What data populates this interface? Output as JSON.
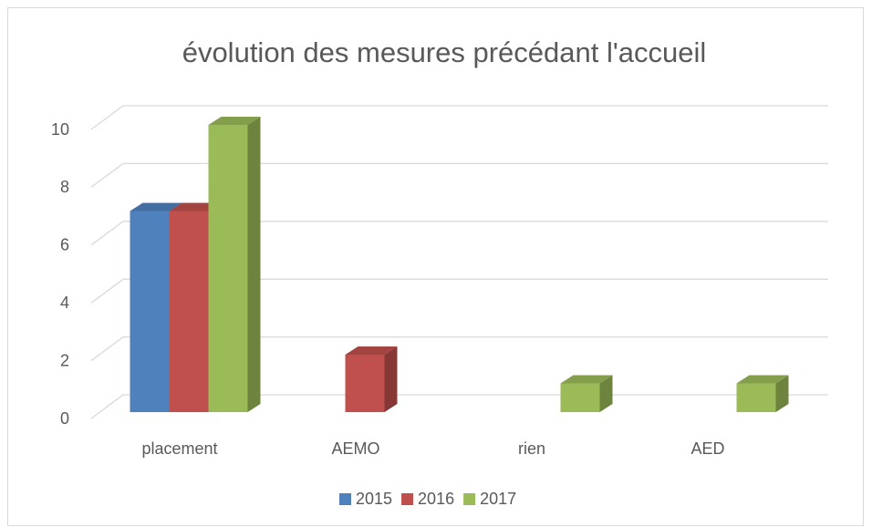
{
  "chart_data": {
    "type": "bar3d",
    "title": "évolution des mesures précédant l'accueil",
    "categories": [
      "placement",
      "AEMO",
      "rien",
      "AED"
    ],
    "series": [
      {
        "name": "2015",
        "color": "#4f81bd",
        "values": [
          7,
          0,
          0,
          0
        ]
      },
      {
        "name": "2016",
        "color": "#c0504d",
        "values": [
          7,
          2,
          0,
          0
        ]
      },
      {
        "name": "2017",
        "color": "#9bbb59",
        "values": [
          10,
          0,
          1,
          1
        ]
      }
    ],
    "ylim": [
      0,
      10
    ],
    "yticks": [
      0,
      2,
      4,
      6,
      8,
      10
    ],
    "grid": true,
    "legend": "bottom"
  }
}
